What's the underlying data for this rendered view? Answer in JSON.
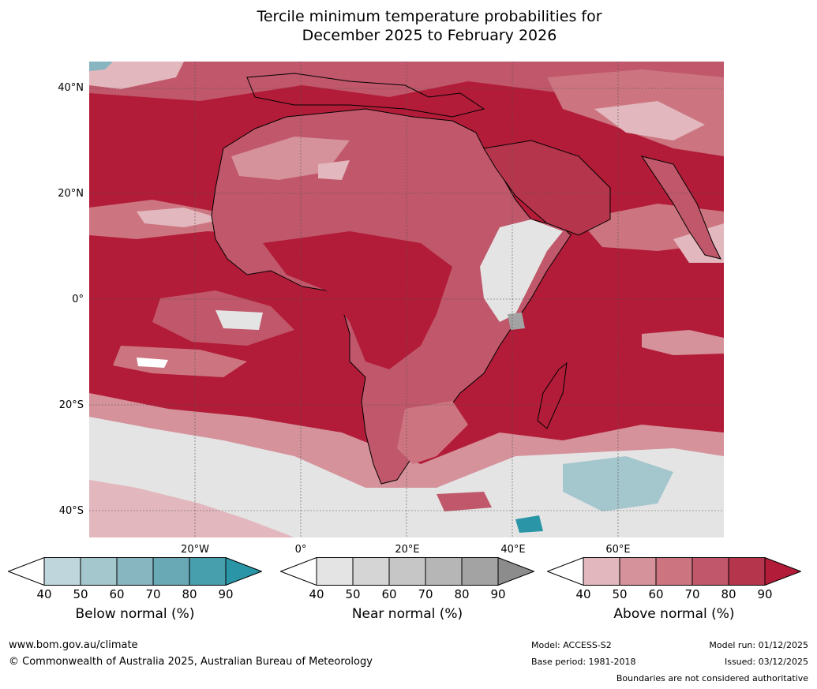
{
  "title_line1": "Tercile minimum temperature probabilities for",
  "title_line2": "December 2025 to February 2026",
  "lat_labels": [
    "40°N",
    "20°N",
    "0°",
    "20°S",
    "40°S"
  ],
  "lon_labels": [
    "20°W",
    "0°",
    "20°E",
    "40°E",
    "60°E"
  ],
  "colorbars": [
    {
      "name": "below-normal",
      "label": "Below normal (%)",
      "ticks": [
        "40",
        "50",
        "60",
        "70",
        "80",
        "90"
      ],
      "colors": [
        "#ffffff",
        "#bfd6dd",
        "#a4c6cd",
        "#87b6c0",
        "#69a8b5",
        "#479ead",
        "#2a95a6"
      ]
    },
    {
      "name": "near-normal",
      "label": "Near normal (%)",
      "ticks": [
        "40",
        "50",
        "60",
        "70",
        "80",
        "90"
      ],
      "colors": [
        "#ffffff",
        "#e4e4e4",
        "#d5d5d5",
        "#c6c6c6",
        "#b6b6b6",
        "#a3a3a3",
        "#8c8c8c"
      ]
    },
    {
      "name": "above-normal",
      "label": "Above normal (%)",
      "ticks": [
        "40",
        "50",
        "60",
        "70",
        "80",
        "90"
      ],
      "colors": [
        "#ffffff",
        "#e2b7bd",
        "#d5929b",
        "#cc7580",
        "#c0576a",
        "#b5354c",
        "#b21c38"
      ]
    }
  ],
  "footer": {
    "url": "www.bom.gov.au/climate",
    "copyright": "© Commonwealth of Australia 2025, Australian Bureau of Meteorology",
    "model": "Model: ACCESS-S2",
    "base_period": "Base period: 1981-2018",
    "model_run": "Model run: 01/12/2025",
    "issued": "Issued: 03/12/2025",
    "disclaimer": "Boundaries are not considered authoritative"
  },
  "colors": {
    "above_90": "#b21c38",
    "above_80": "#b5354c",
    "above_70": "#c0576a",
    "above_60": "#cc7580",
    "above_50": "#d5929b",
    "near": "#e4e4e4",
    "below": "#87b6c0"
  }
}
